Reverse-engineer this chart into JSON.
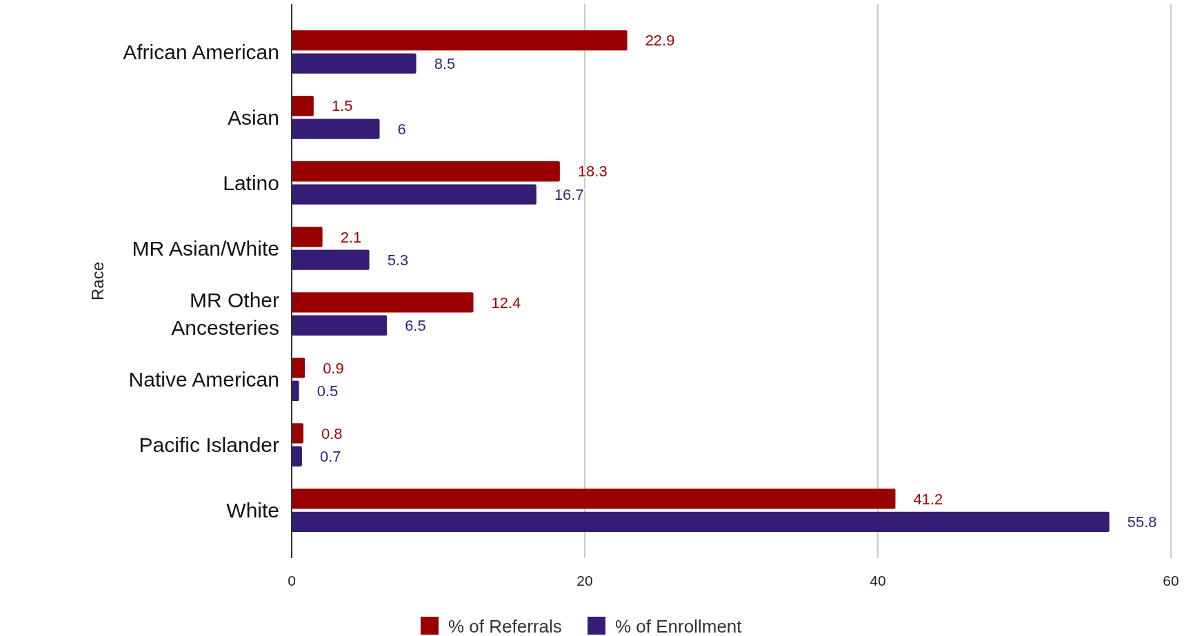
{
  "chart_data": {
    "type": "bar",
    "orientation": "horizontal",
    "ylabel": "Race",
    "categories": [
      "African American",
      "Asian",
      "Latino",
      "MR Asian/White",
      "MR Other Ancesteries",
      "Native American",
      "Pacific Islander",
      "White"
    ],
    "series": [
      {
        "name": "% of Referrals",
        "color": "#990000",
        "values": [
          22.9,
          1.5,
          18.3,
          2.1,
          12.4,
          0.9,
          0.8,
          41.2
        ]
      },
      {
        "name": "% of Enrollment",
        "color": "#351c75",
        "values": [
          8.5,
          6,
          16.7,
          5.3,
          6.5,
          0.5,
          0.7,
          55.8
        ]
      }
    ],
    "xlim": [
      0,
      60
    ],
    "xticks": [
      0,
      20,
      40,
      60
    ],
    "grid": "x",
    "legend": "bottom",
    "data_labels": true
  }
}
